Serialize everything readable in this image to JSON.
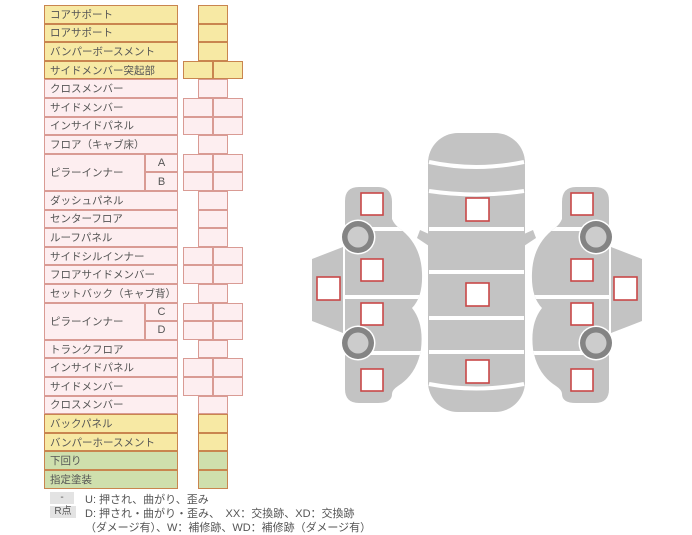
{
  "colors": {
    "yellow_fill": "#f7e9a4",
    "yellow_border": "#c9854f",
    "pink_fill": "#fdeef0",
    "pink_border": "#d99b94",
    "green_fill": "#cfdfad",
    "text": "#555555",
    "badge_bg": "#e3e3e3",
    "car_body_gray": "#c3c3c3",
    "wheel_ring": "#848484",
    "wheel_hub": "#cccccc",
    "marker_border": "#c84848"
  },
  "parts_table": {
    "rows": [
      {
        "label": "コアサポート",
        "color": "yellow",
        "cells": "single"
      },
      {
        "label": "ロアサポート",
        "color": "yellow",
        "cells": "single"
      },
      {
        "label": "バンパーボースメント",
        "color": "yellow",
        "cells": "single"
      },
      {
        "label": "サイドメンバー突起部",
        "color": "yellow",
        "cells": "double"
      },
      {
        "label": "クロスメンバー",
        "color": "pink",
        "cells": "single"
      },
      {
        "label": "サイドメンバー",
        "color": "pink",
        "cells": "double"
      },
      {
        "label": "インサイドパネル",
        "color": "pink",
        "cells": "double"
      },
      {
        "label": "フロア（キャブ床）",
        "color": "pink",
        "cells": "single"
      },
      {
        "label": "ピラーインナー",
        "sub": "A",
        "color": "pink",
        "cells": "double"
      },
      {
        "label": "",
        "sub": "B",
        "color": "pink",
        "cells": "double"
      },
      {
        "label": "ダッシュパネル",
        "color": "pink",
        "cells": "single"
      },
      {
        "label": "センターフロア",
        "color": "pink",
        "cells": "single"
      },
      {
        "label": "ルーフパネル",
        "color": "pink",
        "cells": "single"
      },
      {
        "label": "サイドシルインナー",
        "color": "pink",
        "cells": "double"
      },
      {
        "label": "フロアサイドメンバー",
        "color": "pink",
        "cells": "double"
      },
      {
        "label": "セットバック（キャブ背）",
        "color": "pink",
        "cells": "single"
      },
      {
        "label": "ピラーインナー",
        "sub": "C",
        "color": "pink",
        "cells": "double"
      },
      {
        "label": "",
        "sub": "D",
        "color": "pink",
        "cells": "double"
      },
      {
        "label": "トランクフロア",
        "color": "pink",
        "cells": "single"
      },
      {
        "label": "インサイドパネル",
        "color": "pink",
        "cells": "double"
      },
      {
        "label": "サイドメンバー",
        "color": "pink",
        "cells": "double"
      },
      {
        "label": "クロスメンバー",
        "color": "pink",
        "cells": "single"
      },
      {
        "label": "バックパネル",
        "color": "yellow",
        "cells": "single"
      },
      {
        "label": "バンパーホースメント",
        "color": "yellow",
        "cells": "single"
      },
      {
        "label": "下回り",
        "color": "green",
        "cells": "single"
      },
      {
        "label": "指定塗装",
        "color": "green",
        "cells": "single"
      }
    ]
  },
  "legend": {
    "rows": [
      {
        "badge": "-",
        "text": "U: 押され、曲がり、歪み"
      },
      {
        "badge": "R点",
        "text": "D: 押され・曲がり・歪み、　XX：交換跡、XD：交換跡"
      },
      {
        "badge": "",
        "text": "（ダメージ有）、W：補修跡、WD：補修跡（ダメージ有）"
      }
    ]
  },
  "diagram": {
    "views": [
      "left-side",
      "top",
      "right-side"
    ],
    "left_side_marker_count": 5,
    "top_marker_count": 3,
    "right_side_marker_count": 5,
    "wheel_count": 4
  }
}
